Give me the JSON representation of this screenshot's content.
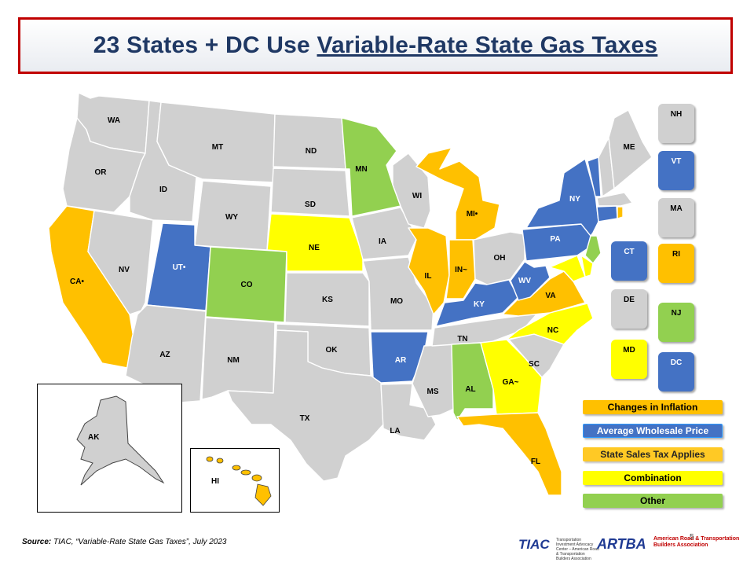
{
  "title": {
    "prefix": "23 States + DC Use ",
    "underlined": "Variable-Rate State Gas Taxes"
  },
  "colors": {
    "none": "#d0d0d0",
    "inflation": "#ffc000",
    "wholesale": "#4472c4",
    "sales_tax": "#ffc000",
    "combination": "#ffff00",
    "other": "#92d050"
  },
  "states": {
    "WA": "WA",
    "OR": "OR",
    "CA": "CA•",
    "NV": "NV",
    "ID": "ID",
    "MT": "MT",
    "WY": "WY",
    "UT": "UT•",
    "AZ": "AZ",
    "CO": "CO",
    "NM": "NM",
    "ND": "ND",
    "SD": "SD",
    "NE": "NE",
    "KS": "KS",
    "OK": "OK",
    "TX": "TX",
    "MN": "MN",
    "IA": "IA",
    "MO": "MO",
    "AR": "AR",
    "LA": "LA",
    "WI": "WI",
    "IL": "IL",
    "MS": "MS",
    "MI": "MI•",
    "IN": "IN~",
    "KY": "KY",
    "TN": "TN",
    "AL": "AL",
    "OH": "OH",
    "WV": "WV",
    "VA": "VA",
    "NC": "NC",
    "SC": "SC",
    "GA": "GA~",
    "FL": "FL",
    "PA": "PA",
    "NY": "NY",
    "ME": "ME",
    "AK": "AK",
    "HI": "HI"
  },
  "tiles": {
    "NH": "NH",
    "VT": "VT",
    "MA": "MA",
    "CT": "CT",
    "RI": "RI",
    "DE": "DE",
    "NJ": "NJ",
    "MD": "MD",
    "DC": "DC"
  },
  "legend": {
    "inflation": "Changes in Inflation",
    "wholesale": "Average Wholesale Price",
    "sales_tax": "State Sales Tax Applies",
    "combination": "Combination",
    "other": "Other"
  },
  "source": {
    "label": "Source:",
    "text": " TIAC, “Variable-Rate State Gas Taxes”, July 2023"
  },
  "logos": {
    "tiac": "TIAC",
    "tiac_sub": "Transportation Investment Advocacy Center – American Road & Transportation Builders Association",
    "artba": "ARTBA",
    "artba_text": "American Road & Transportation Builders Association"
  },
  "page_number": "5"
}
